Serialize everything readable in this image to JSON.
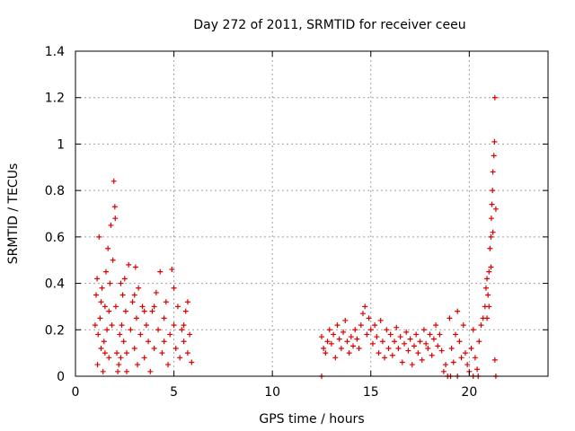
{
  "chart_data": {
    "type": "scatter",
    "title": "Day 272 of 2011, SRMTID for receiver ceeu",
    "xlabel": "GPS time / hours",
    "ylabel": "SRMTID / TECUs",
    "xlim": [
      0,
      24
    ],
    "ylim": [
      0,
      1.4
    ],
    "x_ticks": [
      0,
      5,
      10,
      15,
      20
    ],
    "y_ticks": [
      0,
      0.2,
      0.4,
      0.6,
      0.8,
      1,
      1.2,
      1.4
    ],
    "x_tick_labels": [
      "0",
      "5",
      "10",
      "15",
      "20"
    ],
    "y_tick_labels": [
      "0",
      "0.2",
      "0.4",
      "0.6",
      "0.8",
      "1",
      "1.2",
      "1.4"
    ],
    "grid": true,
    "legend": "none",
    "colors": {
      "series": "#dd0000",
      "grid": "#a0a0a0",
      "axis": "#000000"
    },
    "series": [
      {
        "marker": "plus",
        "points": [
          [
            1.0,
            0.22
          ],
          [
            1.05,
            0.35
          ],
          [
            1.1,
            0.42
          ],
          [
            1.12,
            0.05
          ],
          [
            1.15,
            0.18
          ],
          [
            1.2,
            0.6
          ],
          [
            1.25,
            0.25
          ],
          [
            1.3,
            0.12
          ],
          [
            1.35,
            0.38
          ],
          [
            1.4,
            0.02
          ],
          [
            1.45,
            0.15
          ],
          [
            1.5,
            0.3
          ],
          [
            1.55,
            0.45
          ],
          [
            1.6,
            0.2
          ],
          [
            1.65,
            0.55
          ],
          [
            1.7,
            0.28
          ],
          [
            1.75,
            0.4
          ],
          [
            1.8,
            0.65
          ],
          [
            1.85,
            0.22
          ],
          [
            1.9,
            0.5
          ],
          [
            1.95,
            0.84
          ],
          [
            2.0,
            0.73
          ],
          [
            2.02,
            0.68
          ],
          [
            2.05,
            0.3
          ],
          [
            2.1,
            0.1
          ],
          [
            2.15,
            0.02
          ],
          [
            2.2,
            0.05
          ],
          [
            2.25,
            0.18
          ],
          [
            2.3,
            0.08
          ],
          [
            2.35,
            0.22
          ],
          [
            2.4,
            0.35
          ],
          [
            2.45,
            0.15
          ],
          [
            2.5,
            0.42
          ],
          [
            2.55,
            0.28
          ],
          [
            2.6,
            0.1
          ],
          [
            2.7,
            0.48
          ],
          [
            2.8,
            0.2
          ],
          [
            2.9,
            0.32
          ],
          [
            3.0,
            0.12
          ],
          [
            3.05,
            0.47
          ],
          [
            3.1,
            0.25
          ],
          [
            3.15,
            0.05
          ],
          [
            3.2,
            0.38
          ],
          [
            3.3,
            0.18
          ],
          [
            3.4,
            0.3
          ],
          [
            3.5,
            0.08
          ],
          [
            3.6,
            0.22
          ],
          [
            3.7,
            0.15
          ],
          [
            3.8,
            0.02
          ],
          [
            3.9,
            0.28
          ],
          [
            4.0,
            0.12
          ],
          [
            4.1,
            0.36
          ],
          [
            4.2,
            0.2
          ],
          [
            4.3,
            0.45
          ],
          [
            4.4,
            0.1
          ],
          [
            4.5,
            0.25
          ],
          [
            4.6,
            0.32
          ],
          [
            4.7,
            0.05
          ],
          [
            4.8,
            0.18
          ],
          [
            4.9,
            0.46
          ],
          [
            5.0,
            0.22
          ],
          [
            5.1,
            0.12
          ],
          [
            5.2,
            0.3
          ],
          [
            5.3,
            0.08
          ],
          [
            5.4,
            0.2
          ],
          [
            5.5,
            0.15
          ],
          [
            5.6,
            0.28
          ],
          [
            5.7,
            0.1
          ],
          [
            5.8,
            0.18
          ],
          [
            5.9,
            0.06
          ],
          [
            1.3,
            0.32
          ],
          [
            1.5,
            0.1
          ],
          [
            1.7,
            0.08
          ],
          [
            2.3,
            0.4
          ],
          [
            2.6,
            0.02
          ],
          [
            3.0,
            0.35
          ],
          [
            3.5,
            0.28
          ],
          [
            4.0,
            0.3
          ],
          [
            4.5,
            0.15
          ],
          [
            5.0,
            0.38
          ],
          [
            5.5,
            0.22
          ],
          [
            5.7,
            0.32
          ],
          [
            12.5,
            0.17
          ],
          [
            12.6,
            0.12
          ],
          [
            12.7,
            0.1
          ],
          [
            12.8,
            0.15
          ],
          [
            12.9,
            0.2
          ],
          [
            13.0,
            0.14
          ],
          [
            13.1,
            0.18
          ],
          [
            13.2,
            0.08
          ],
          [
            13.3,
            0.22
          ],
          [
            13.4,
            0.16
          ],
          [
            13.5,
            0.12
          ],
          [
            13.6,
            0.19
          ],
          [
            13.7,
            0.24
          ],
          [
            13.8,
            0.15
          ],
          [
            13.9,
            0.1
          ],
          [
            14.0,
            0.17
          ],
          [
            14.1,
            0.13
          ],
          [
            14.2,
            0.2
          ],
          [
            14.3,
            0.16
          ],
          [
            14.4,
            0.12
          ],
          [
            14.5,
            0.22
          ],
          [
            14.6,
            0.27
          ],
          [
            14.7,
            0.3
          ],
          [
            14.8,
            0.18
          ],
          [
            14.9,
            0.25
          ],
          [
            15.0,
            0.2
          ],
          [
            15.1,
            0.14
          ],
          [
            15.2,
            0.22
          ],
          [
            15.3,
            0.17
          ],
          [
            15.4,
            0.1
          ],
          [
            15.5,
            0.24
          ],
          [
            15.6,
            0.15
          ],
          [
            15.7,
            0.08
          ],
          [
            15.8,
            0.2
          ],
          [
            15.9,
            0.12
          ],
          [
            16.0,
            0.18
          ],
          [
            16.1,
            0.09
          ],
          [
            16.2,
            0.15
          ],
          [
            16.3,
            0.21
          ],
          [
            16.4,
            0.12
          ],
          [
            16.5,
            0.17
          ],
          [
            16.6,
            0.06
          ],
          [
            16.7,
            0.14
          ],
          [
            16.8,
            0.19
          ],
          [
            16.9,
            0.11
          ],
          [
            17.0,
            0.16
          ],
          [
            17.1,
            0.05
          ],
          [
            17.2,
            0.13
          ],
          [
            17.3,
            0.18
          ],
          [
            17.4,
            0.1
          ],
          [
            17.5,
            0.15
          ],
          [
            17.6,
            0.07
          ],
          [
            17.7,
            0.2
          ],
          [
            17.8,
            0.14
          ],
          [
            17.9,
            0.12
          ],
          [
            18.0,
            0.18
          ],
          [
            18.1,
            0.09
          ],
          [
            18.2,
            0.16
          ],
          [
            18.3,
            0.22
          ],
          [
            18.4,
            0.13
          ],
          [
            18.5,
            0.18
          ],
          [
            18.6,
            0.11
          ],
          [
            18.7,
            0.02
          ],
          [
            18.8,
            0.05
          ],
          [
            19.0,
            0.25
          ],
          [
            19.1,
            0.12
          ],
          [
            19.2,
            0.06
          ],
          [
            19.3,
            0.18
          ],
          [
            19.4,
            0.28
          ],
          [
            19.5,
            0.15
          ],
          [
            19.6,
            0.08
          ],
          [
            19.7,
            0.22
          ],
          [
            19.8,
            0.1
          ],
          [
            19.9,
            0.05
          ],
          [
            20.0,
            0.02
          ],
          [
            20.1,
            0.12
          ],
          [
            20.2,
            0.2
          ],
          [
            20.3,
            0.08
          ],
          [
            20.4,
            0.03
          ],
          [
            20.5,
            0.15
          ],
          [
            20.6,
            0.22
          ],
          [
            20.7,
            0.25
          ],
          [
            20.8,
            0.3
          ],
          [
            20.85,
            0.38
          ],
          [
            20.9,
            0.42
          ],
          [
            20.95,
            0.35
          ],
          [
            21.0,
            0.45
          ],
          [
            21.05,
            0.55
          ],
          [
            21.1,
            0.6
          ],
          [
            21.12,
            0.68
          ],
          [
            21.15,
            0.74
          ],
          [
            21.18,
            0.8
          ],
          [
            21.2,
            0.88
          ],
          [
            21.25,
            0.95
          ],
          [
            21.28,
            1.01
          ],
          [
            21.3,
            1.2
          ],
          [
            21.35,
            0.72
          ],
          [
            21.1,
            0.47
          ],
          [
            21.0,
            0.3
          ],
          [
            20.9,
            0.25
          ],
          [
            21.2,
            0.62
          ],
          [
            21.3,
            0.07
          ],
          [
            12.5,
            0.0
          ],
          [
            18.9,
            0.0
          ],
          [
            19.05,
            0.0
          ],
          [
            19.4,
            0.0
          ],
          [
            20.2,
            0.0
          ],
          [
            20.45,
            0.0
          ],
          [
            21.35,
            0.0
          ]
        ]
      }
    ]
  }
}
